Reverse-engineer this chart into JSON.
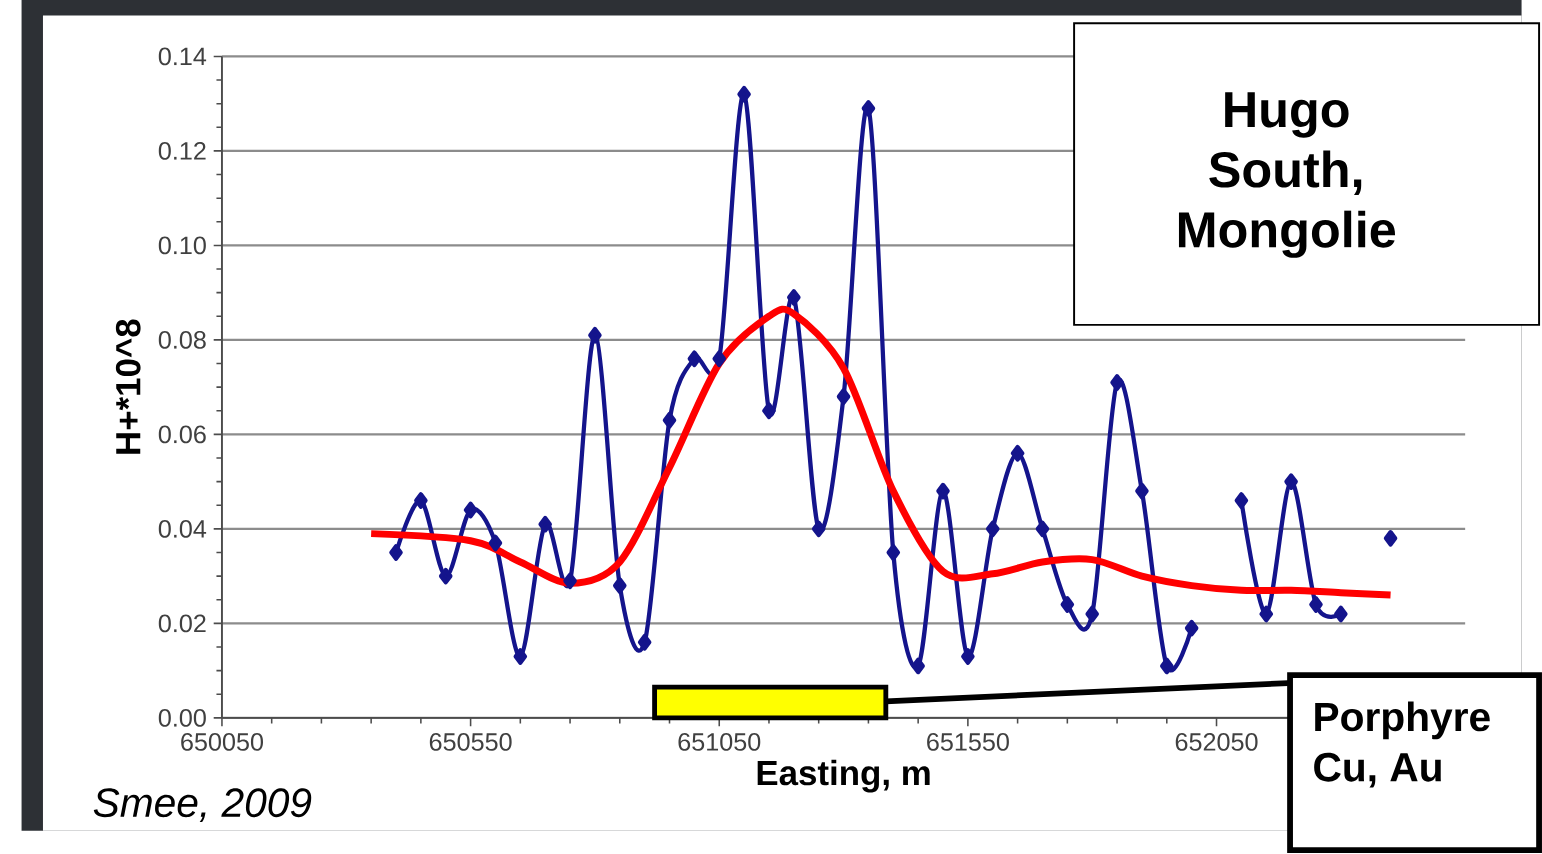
{
  "chart_data": {
    "type": "line",
    "title": "Hugo South, Mongolie",
    "xlabel": "Easting, m",
    "ylabel": "H+*10^8",
    "annotations": [
      "Smee, 2009"
    ],
    "x": [
      650400,
      650450,
      650500,
      650550,
      650600,
      650650,
      650700,
      650750,
      650800,
      650850,
      650900,
      650950,
      651000,
      651050,
      651100,
      651150,
      651200,
      651250,
      651300,
      651350,
      651400,
      651450,
      651500,
      651550,
      651600,
      651650,
      651700,
      651750,
      651800,
      651850,
      651900,
      651950,
      652000,
      652050,
      652100,
      652150,
      652200,
      652250,
      652300,
      652350,
      652400
    ],
    "series": [
      {
        "color": "#14148c",
        "marker": "diamond",
        "values": [
          0.035,
          0.046,
          0.03,
          0.044,
          0.037,
          0.013,
          0.041,
          0.029,
          0.081,
          0.028,
          0.016,
          0.063,
          0.076,
          0.076,
          0.132,
          0.065,
          0.089,
          0.04,
          0.068,
          0.129,
          0.035,
          0.011,
          0.048,
          0.013,
          0.04,
          0.056,
          0.04,
          0.024,
          0.022,
          0.071,
          0.048,
          0.011,
          0.019,
          null,
          0.046,
          0.022,
          0.05,
          0.024,
          0.022,
          null,
          0.038
        ]
      },
      {
        "color": "#ff0000",
        "marker": "none",
        "x": [
          650350,
          650550,
          650650,
          650750,
          650850,
          650950,
          651050,
          651150,
          651200,
          651300,
          651400,
          651500,
          651600,
          651700,
          651800,
          651900,
          652000,
          652100,
          652200,
          652300,
          652400
        ],
        "values": [
          0.039,
          0.0375,
          0.033,
          0.0285,
          0.033,
          0.053,
          0.075,
          0.085,
          0.0855,
          0.074,
          0.048,
          0.031,
          0.0305,
          0.033,
          0.0335,
          0.03,
          0.028,
          0.027,
          0.027,
          0.0265,
          0.026
        ]
      }
    ],
    "xlim": [
      650050,
      652550
    ],
    "ylim": [
      0,
      0.14
    ],
    "xticks": [
      650050,
      650550,
      651050,
      651550,
      652050
    ],
    "yticks": [
      {
        "value": 0,
        "label": "0.00"
      },
      {
        "value": 0.02,
        "label": "0.02"
      },
      {
        "value": 0.04,
        "label": "0.04"
      },
      {
        "value": 0.06,
        "label": "0.06"
      },
      {
        "value": 0.08,
        "label": "0.08"
      },
      {
        "value": 0.1,
        "label": "0.10"
      },
      {
        "value": 0.12,
        "label": "0.12"
      },
      {
        "value": 0.14,
        "label": "0.14"
      }
    ],
    "grid": "y",
    "bands": [
      {
        "axis": "x",
        "from": 650920,
        "to": 651385,
        "label": "Porphyre Cu, Au",
        "color": "#ffff00"
      }
    ]
  }
}
